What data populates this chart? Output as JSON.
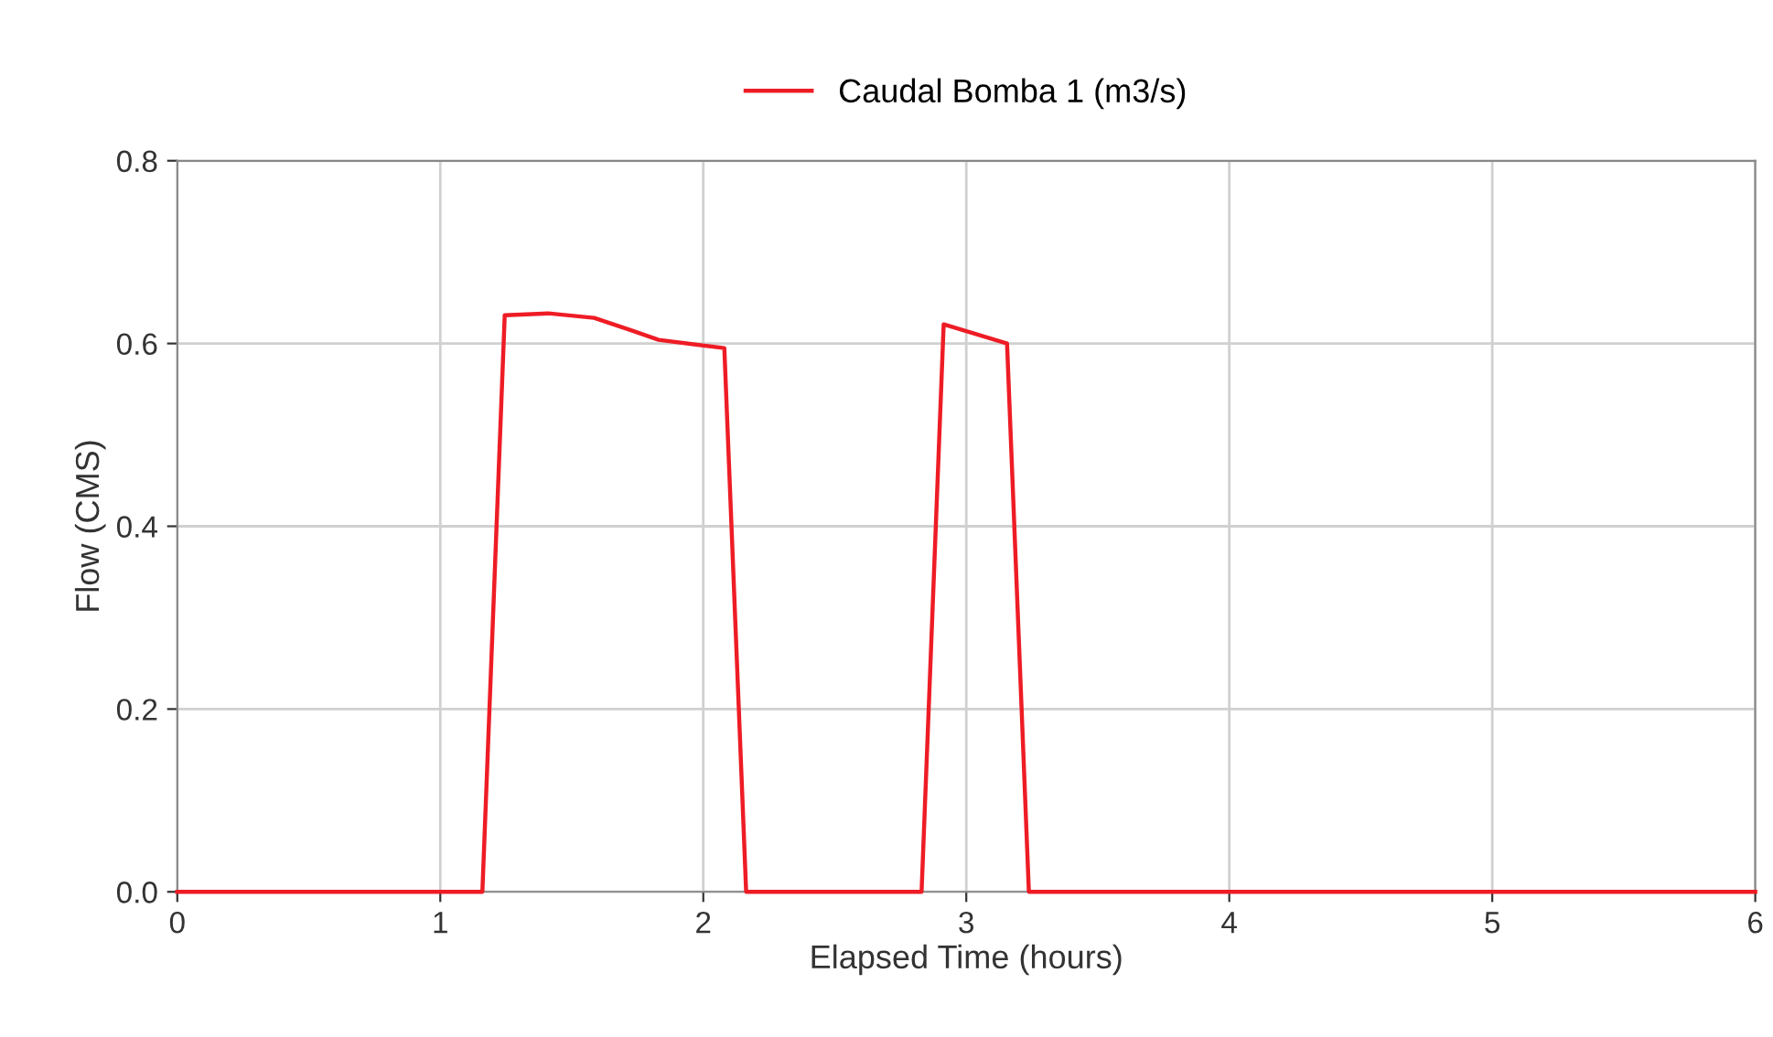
{
  "chart_data": {
    "type": "line",
    "xlabel": "Elapsed Time (hours)",
    "ylabel": "Flow (CMS)",
    "x": [
      0,
      1.16,
      1.245,
      1.41,
      1.585,
      1.72,
      1.83,
      2.08,
      2.163,
      2.83,
      2.914,
      3.155,
      3.238,
      6
    ],
    "series": [
      {
        "name": "Caudal Bomba 1 (m3/s)",
        "color": "#ee1c25",
        "values": [
          0,
          0,
          0.631,
          0.633,
          0.628,
          0.615,
          0.604,
          0.595,
          0,
          0,
          0.621,
          0.6,
          0,
          0
        ]
      }
    ],
    "xlim": [
      0,
      6
    ],
    "xticks": [
      0,
      1,
      2,
      3,
      4,
      5,
      6
    ],
    "ylim": [
      0,
      0.8
    ],
    "yticks": [
      {
        "value": 0,
        "label": "0.0"
      },
      {
        "value": 0.2,
        "label": "0.2"
      },
      {
        "value": 0.4,
        "label": "0.4"
      },
      {
        "value": 0.6,
        "label": "0.6"
      },
      {
        "value": 0.8,
        "label": "0.8"
      }
    ],
    "grid": true,
    "legend": "top",
    "marker": "none",
    "line_style": "solid"
  }
}
